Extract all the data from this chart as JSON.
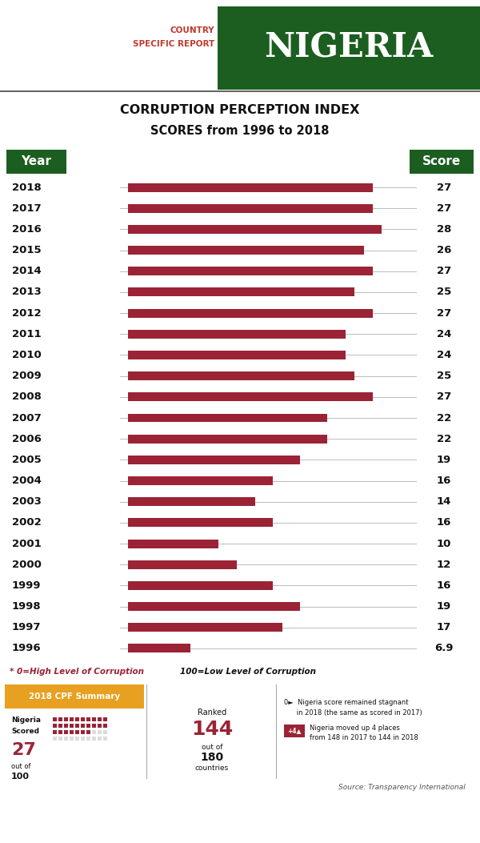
{
  "years": [
    "2018",
    "2017",
    "2016",
    "2015",
    "2014",
    "2013",
    "2012",
    "2011",
    "2010",
    "2009",
    "2008",
    "2007",
    "2006",
    "2005",
    "2004",
    "2003",
    "2002",
    "2001",
    "2000",
    "1999",
    "1998",
    "1997",
    "1996"
  ],
  "scores": [
    27,
    27,
    28,
    26,
    27,
    25,
    27,
    24,
    24,
    25,
    27,
    22,
    22,
    19,
    16,
    14,
    16,
    10,
    12,
    16,
    19,
    17,
    6.9
  ],
  "bar_color": "#9B2335",
  "bg_color": "#FFFFFF",
  "header_bg": "#1B5E20",
  "title_red": "#C0392B",
  "footer_bg": "#1B5E20",
  "summary_bg": "#C8C8C8",
  "summary_title_bg": "#E8A020",
  "line_color": "#BBBBBB",
  "bar_display_max": 30,
  "source": "Source: Transparency International"
}
